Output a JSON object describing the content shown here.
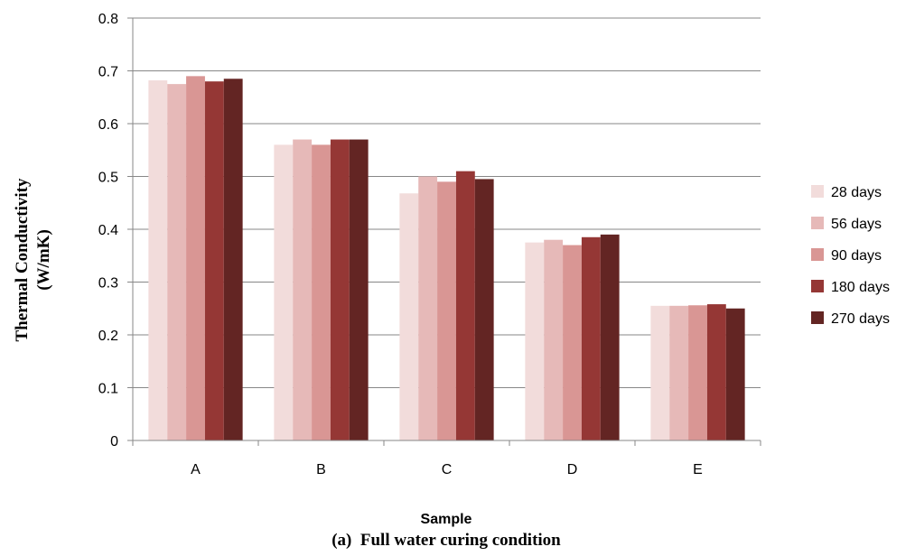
{
  "chart_data": {
    "type": "bar",
    "categories": [
      "A",
      "B",
      "C",
      "D",
      "E"
    ],
    "series": [
      {
        "name": "28 days",
        "color": "#F2DCDB",
        "values": [
          0.682,
          0.56,
          0.468,
          0.375,
          0.255
        ]
      },
      {
        "name": "56 days",
        "color": "#E6B9B8",
        "values": [
          0.675,
          0.57,
          0.5,
          0.38,
          0.255
        ]
      },
      {
        "name": "90 days",
        "color": "#D99694",
        "values": [
          0.69,
          0.56,
          0.49,
          0.37,
          0.256
        ]
      },
      {
        "name": "180 days",
        "color": "#953735",
        "values": [
          0.68,
          0.57,
          0.51,
          0.385,
          0.258
        ]
      },
      {
        "name": "270 days",
        "color": "#632523",
        "values": [
          0.685,
          0.57,
          0.495,
          0.39,
          0.25
        ]
      }
    ],
    "ylim": [
      0,
      0.8
    ],
    "yticks": [
      "0",
      "0.1",
      "0.2",
      "0.3",
      "0.4",
      "0.5",
      "0.6",
      "0.7",
      "0.8"
    ],
    "xlabel": "Sample",
    "ylabel_line1": "Thermal Conductivity",
    "ylabel_line2": "(W/mK)",
    "caption": "(a)  Full water curing condition",
    "grid": true,
    "legend_position": "right"
  }
}
